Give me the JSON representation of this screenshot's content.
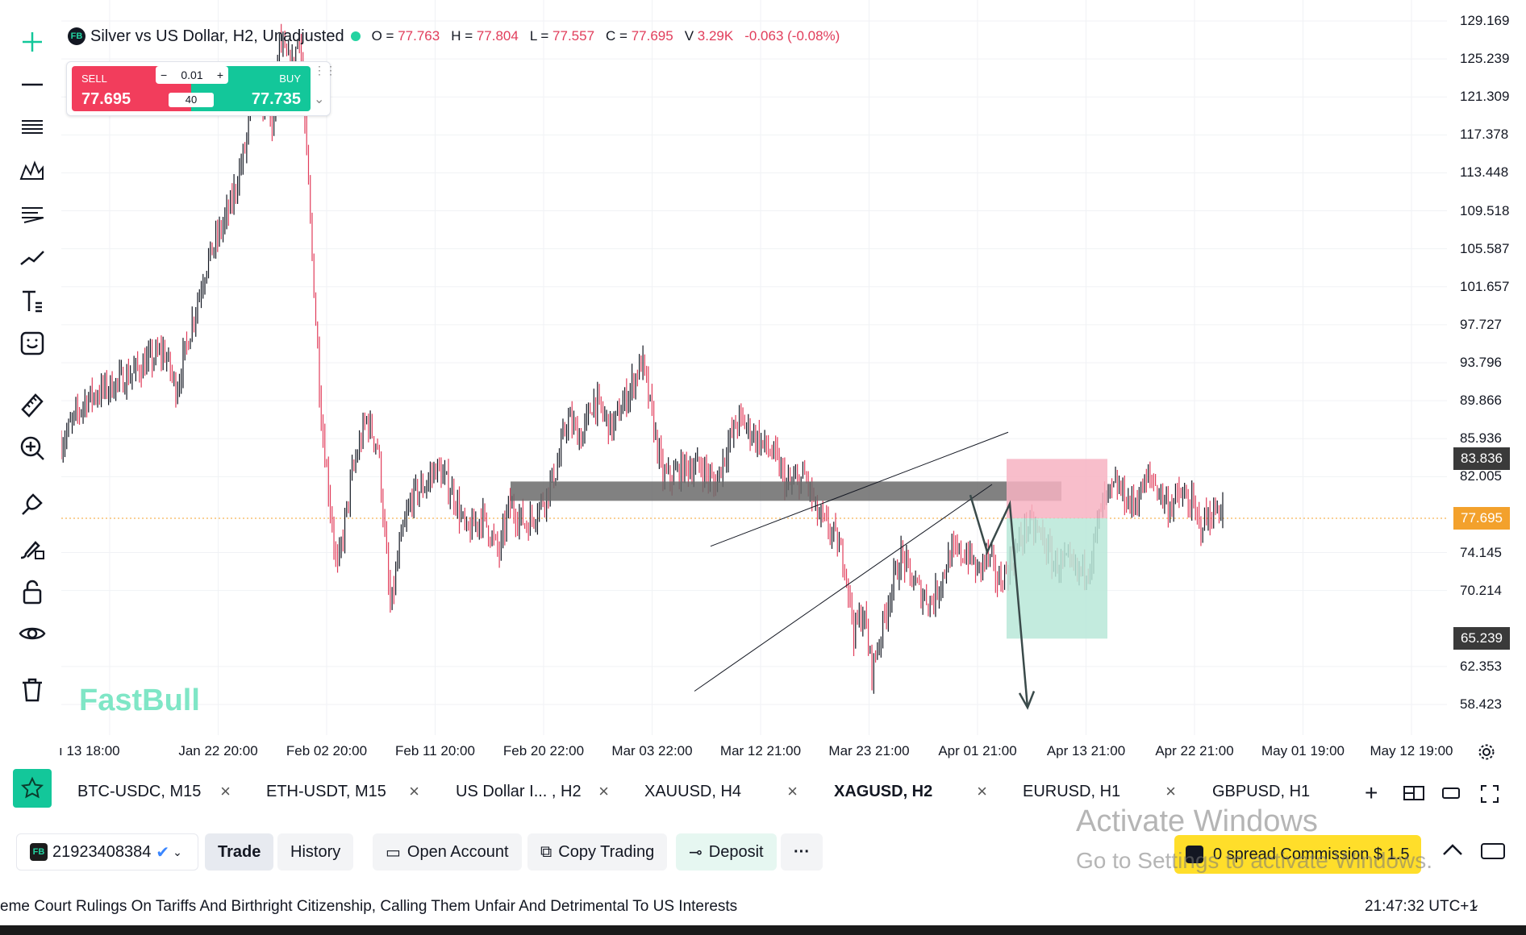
{
  "legend": {
    "symbol_badge": "FB",
    "title": "Silver vs US Dollar, H2, Unadjusted",
    "ohlc": [
      {
        "k": "O",
        "v": "77.763"
      },
      {
        "k": "H",
        "v": "77.804"
      },
      {
        "k": "L",
        "v": "77.557"
      },
      {
        "k": "C",
        "v": "77.695"
      },
      {
        "k": "V",
        "v": "3.29K"
      }
    ],
    "change": "-0.063 (-0.08%)",
    "up_color": "#23d3a1",
    "down_color": "#e13d5b"
  },
  "trade_widget": {
    "sell_label": "SELL",
    "sell_price": "77.695",
    "buy_label": "BUY",
    "buy_price": "77.735",
    "lot": "0.01",
    "spread": "40",
    "sell_color": "#f23d5c",
    "buy_color": "#13c79a"
  },
  "price_scale": {
    "ticks": [
      "129.169",
      "125.239",
      "121.309",
      "117.378",
      "113.448",
      "109.518",
      "105.587",
      "101.657",
      "97.727",
      "93.796",
      "89.866",
      "85.936",
      "82.005",
      "74.145",
      "70.214",
      "62.353",
      "58.423"
    ],
    "badges": [
      {
        "label": "83.836",
        "color": "#3a3a3a"
      },
      {
        "label": "77.695",
        "color": "#f3a12c"
      },
      {
        "label": "65.239",
        "color": "#3a3a3a"
      }
    ]
  },
  "time_scale": {
    "ticks": [
      "ı 13 18:00",
      "Jan 22 20:00",
      "Feb 02 20:00",
      "Feb 11 20:00",
      "Feb 20 22:00",
      "Mar 03 22:00",
      "Mar 12 21:00",
      "Mar 23 21:00",
      "Apr 01 21:00",
      "Apr 13 21:00",
      "Apr 22 21:00",
      "May 01 19:00",
      "May 12 19:00"
    ]
  },
  "chart_data": {
    "type": "candlestick",
    "symbol": "XAGUSD",
    "timeframe": "H2",
    "ylim": [
      58.423,
      129.169
    ],
    "last_price": 77.695,
    "path": [
      [
        0,
        85.5
      ],
      [
        0.02,
        90
      ],
      [
        0.05,
        92
      ],
      [
        0.085,
        95
      ],
      [
        0.095,
        91
      ],
      [
        0.11,
        99
      ],
      [
        0.12,
        104
      ],
      [
        0.14,
        110
      ],
      [
        0.152,
        116
      ],
      [
        0.16,
        123
      ],
      [
        0.175,
        118
      ],
      [
        0.18,
        127
      ],
      [
        0.19,
        124
      ],
      [
        0.197,
        128
      ],
      [
        0.205,
        110
      ],
      [
        0.215,
        88
      ],
      [
        0.228,
        72
      ],
      [
        0.24,
        82
      ],
      [
        0.252,
        88
      ],
      [
        0.262,
        85
      ],
      [
        0.272,
        68
      ],
      [
        0.28,
        75
      ],
      [
        0.29,
        80
      ],
      [
        0.3,
        81
      ],
      [
        0.31,
        83
      ],
      [
        0.325,
        80
      ],
      [
        0.335,
        76
      ],
      [
        0.348,
        78
      ],
      [
        0.362,
        74
      ],
      [
        0.37,
        79
      ],
      [
        0.385,
        77
      ],
      [
        0.4,
        80
      ],
      [
        0.41,
        83
      ],
      [
        0.418,
        88
      ],
      [
        0.43,
        86
      ],
      [
        0.44,
        90
      ],
      [
        0.455,
        87
      ],
      [
        0.47,
        91
      ],
      [
        0.48,
        94
      ],
      [
        0.49,
        87
      ],
      [
        0.497,
        82
      ],
      [
        0.505,
        82
      ],
      [
        0.515,
        83
      ],
      [
        0.53,
        83
      ],
      [
        0.54,
        81
      ],
      [
        0.55,
        85
      ],
      [
        0.56,
        88
      ],
      [
        0.575,
        86
      ],
      [
        0.59,
        84
      ],
      [
        0.6,
        81
      ],
      [
        0.615,
        82
      ],
      [
        0.625,
        78
      ],
      [
        0.638,
        76
      ],
      [
        0.648,
        73
      ],
      [
        0.655,
        66
      ],
      [
        0.663,
        68
      ],
      [
        0.67,
        62
      ],
      [
        0.676,
        65
      ],
      [
        0.685,
        70
      ],
      [
        0.695,
        74
      ],
      [
        0.7,
        72
      ],
      [
        0.71,
        70
      ],
      [
        0.72,
        69
      ],
      [
        0.735,
        74
      ],
      [
        0.75,
        74
      ],
      [
        0.757,
        72
      ],
      [
        0.765,
        74
      ],
      [
        0.775,
        71
      ],
      [
        0.785,
        73
      ],
      [
        0.798,
        77
      ],
      [
        0.81,
        76
      ],
      [
        0.82,
        73
      ],
      [
        0.83,
        73
      ],
      [
        0.84,
        72
      ],
      [
        0.85,
        73
      ],
      [
        0.86,
        79
      ],
      [
        0.872,
        81
      ],
      [
        0.885,
        79
      ],
      [
        0.9,
        82
      ],
      [
        0.905,
        81
      ],
      [
        0.915,
        79
      ],
      [
        0.925,
        80
      ],
      [
        0.935,
        79
      ],
      [
        0.94,
        77
      ],
      [
        0.95,
        78
      ],
      [
        0.96,
        79
      ]
    ],
    "drawings": {
      "resistance_zone": [
        79.5,
        81.5
      ],
      "short_position": {
        "entry": 77.695,
        "stop": 83.836,
        "target": 65.239
      },
      "rising_wedge": true,
      "projected_path": true
    }
  },
  "watermark": "FastBull",
  "tabs": [
    {
      "label": "BTC-USDC, M15"
    },
    {
      "label": "ETH-USDT, M15"
    },
    {
      "label": "US Dollar I... , H2"
    },
    {
      "label": "XAUUSD, H4"
    },
    {
      "label": "XAGUSD, H2"
    },
    {
      "label": "EURUSD, H1"
    },
    {
      "label": "GBPUSD, H1"
    }
  ],
  "account": {
    "badge": "FB",
    "id": "21923408384"
  },
  "bottom_bar": {
    "trade": "Trade",
    "history": "History",
    "open_account": "Open Account",
    "copy_trading": "Copy Trading",
    "deposit": "Deposit",
    "more": "···"
  },
  "promo": "0 spread Commission $ 1.5",
  "activate": {
    "line1": "Activate Windows",
    "line2": "Go to Settings to activate Windows."
  },
  "ticker": {
    "headline": "eme Court Rulings On Tariffs And Birthright Citizenship, Calling Them Unfair And Detrimental To US Interests",
    "clock": "21:47:32 UTC+1"
  }
}
